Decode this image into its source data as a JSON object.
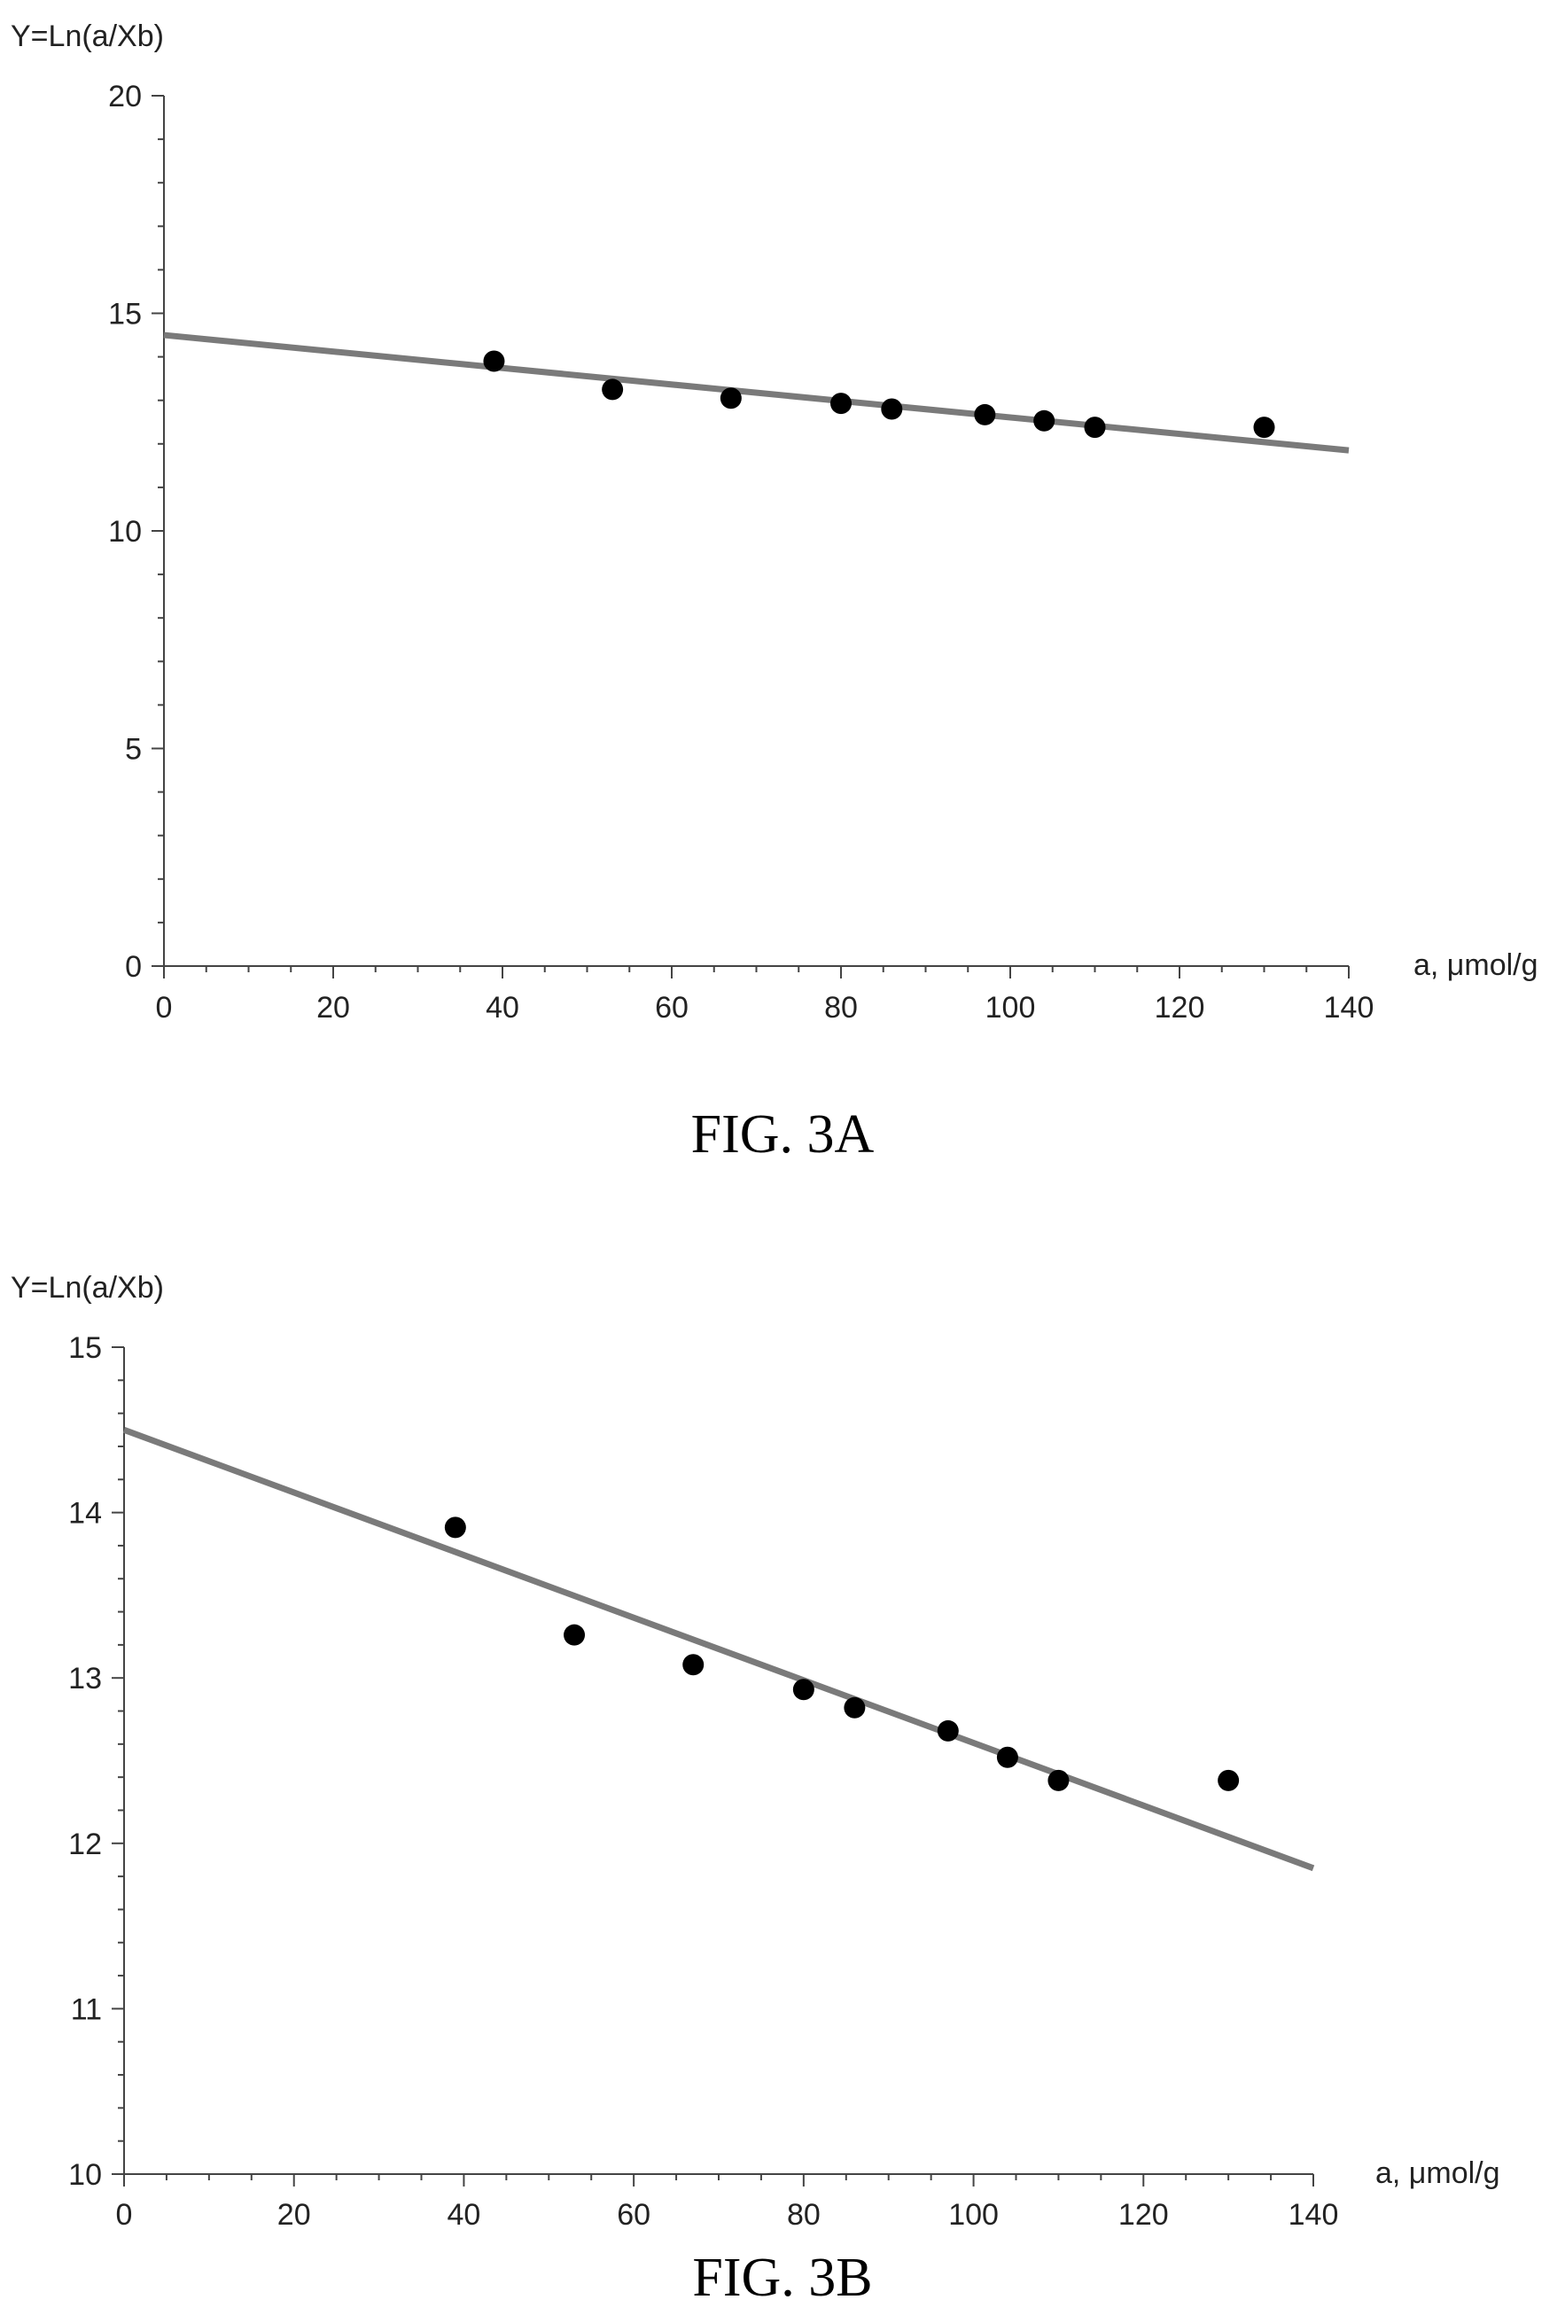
{
  "chart_data": [
    {
      "type": "scatter",
      "caption": "FIG. 3A",
      "ylabel": "Y=Ln(a/Xb)",
      "xlabel": "a, μmol/g",
      "xlim": [
        0,
        140
      ],
      "ylim": [
        0,
        20
      ],
      "x_ticks": [
        0,
        20,
        40,
        60,
        80,
        100,
        120,
        140
      ],
      "y_ticks": [
        0,
        5,
        10,
        15,
        20
      ],
      "x_ticks_labels": [
        "0",
        "20",
        "40",
        "60",
        "80",
        "100",
        "120",
        "140"
      ],
      "y_ticks_labels": [
        "0",
        "5",
        "10",
        "15",
        "20"
      ],
      "points": {
        "x": [
          39,
          53,
          67,
          80,
          86,
          97,
          104,
          110,
          130
        ],
        "y": [
          13.9,
          13.25,
          13.05,
          12.93,
          12.8,
          12.67,
          12.53,
          12.38,
          12.38
        ]
      },
      "fit_line": {
        "x": [
          0,
          140
        ],
        "y": [
          14.5,
          11.85
        ]
      },
      "grid": false
    },
    {
      "type": "scatter",
      "caption": "FIG. 3B",
      "ylabel": "Y=Ln(a/Xb)",
      "xlabel": "a, μmol/g",
      "xlim": [
        0,
        140
      ],
      "ylim": [
        10,
        15
      ],
      "x_ticks": [
        0,
        20,
        40,
        60,
        80,
        100,
        120,
        140
      ],
      "y_ticks": [
        10,
        11,
        12,
        13,
        14,
        15
      ],
      "x_ticks_labels": [
        "0",
        "20",
        "40",
        "60",
        "80",
        "100",
        "120",
        "140"
      ],
      "y_ticks_labels": [
        "10",
        "11",
        "12",
        "13",
        "14",
        "15"
      ],
      "points": {
        "x": [
          39,
          53,
          67,
          80,
          86,
          97,
          104,
          110,
          130
        ],
        "y": [
          13.91,
          13.26,
          13.08,
          12.93,
          12.82,
          12.68,
          12.52,
          12.38,
          12.38
        ]
      },
      "fit_line": {
        "x": [
          0,
          140
        ],
        "y": [
          14.5,
          11.85
        ]
      },
      "grid": false
    }
  ],
  "colors": {
    "points": "#000000",
    "fit_line": "#7a7a7a",
    "axis": "#444444"
  }
}
